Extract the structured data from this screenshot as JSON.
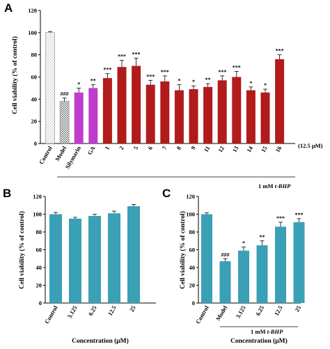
{
  "figure": {
    "panels": [
      "A",
      "B",
      "C"
    ],
    "colors": {
      "control_fill": "#ffffff",
      "model_fill": "#ffffff",
      "silymarin": "#c03ccf",
      "ga": "#c03ccf",
      "compound": "#b21b1b",
      "teal": "#3aa0b5",
      "axis": "#000000"
    }
  },
  "chart_data": [
    {
      "panel": "A",
      "type": "bar",
      "title": "",
      "ylabel": "Cell viability (% of control)",
      "xlabel": "",
      "ylim": [
        0,
        120
      ],
      "yticks": [
        0,
        20,
        40,
        60,
        80,
        100,
        120
      ],
      "categories": [
        "Control",
        "Model",
        "Silymarin",
        "GA",
        "1",
        "2",
        "5",
        "6",
        "7",
        "8",
        "9",
        "11",
        "12",
        "13",
        "14",
        "15",
        "16"
      ],
      "values": [
        100,
        38,
        46,
        50,
        59,
        69,
        70,
        53,
        56,
        48,
        49,
        51,
        57,
        60,
        48,
        46,
        76
      ],
      "errors": [
        1,
        3,
        4,
        3,
        4,
        6,
        7,
        4,
        5,
        5,
        3,
        3,
        4,
        5,
        3,
        3,
        4
      ],
      "significance": [
        "",
        "###",
        "*",
        "**",
        "***",
        "***",
        "***",
        "***",
        "***",
        "*",
        "*",
        "**",
        "***",
        "***",
        "*",
        "*",
        "***"
      ],
      "bar_styles": [
        "dotted",
        "dotted-dark",
        "silymarin",
        "ga",
        "compound",
        "compound",
        "compound",
        "compound",
        "compound",
        "compound",
        "compound",
        "compound",
        "compound",
        "compound",
        "compound",
        "compound",
        "compound"
      ],
      "concentration_note": "(12.5 μM)",
      "treatment_prefix": "1 mM ",
      "treatment_suffix": "t-BHP"
    },
    {
      "panel": "B",
      "type": "bar",
      "title": "",
      "ylabel": "Cell viability (% of control)",
      "xlabel": "Concentration (μM)",
      "ylim": [
        0,
        120
      ],
      "yticks": [
        0,
        20,
        40,
        60,
        80,
        100,
        120
      ],
      "categories": [
        "Control",
        "3.125",
        "6.25",
        "12.5",
        "25"
      ],
      "values": [
        100,
        95,
        98,
        101,
        109
      ],
      "errors": [
        2,
        1.5,
        2,
        2.5,
        2
      ],
      "significance": [
        "",
        "",
        "",
        "",
        ""
      ]
    },
    {
      "panel": "C",
      "type": "bar",
      "title": "",
      "ylabel": "Cell viability (% of control)",
      "xlabel": "Concentration (μM)",
      "ylim": [
        0,
        120
      ],
      "yticks": [
        0,
        20,
        40,
        60,
        80,
        100,
        120
      ],
      "categories": [
        "Control",
        "Model",
        "3.125",
        "6.25",
        "12.5",
        "25"
      ],
      "values": [
        100,
        47,
        59,
        65,
        86,
        91
      ],
      "errors": [
        1.5,
        3,
        4,
        5,
        5,
        4
      ],
      "significance": [
        "",
        "###",
        "*",
        "**",
        "***",
        "***"
      ],
      "treatment_prefix": "1 mM ",
      "treatment_suffix": "t-BHP"
    }
  ]
}
